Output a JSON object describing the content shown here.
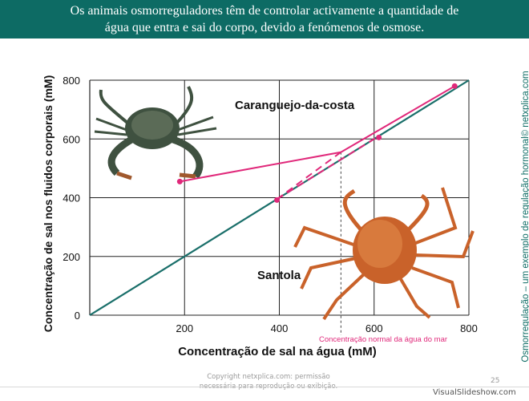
{
  "header": {
    "line1": "Os animais osmorreguladores têm de controlar activamente a quantidade de",
    "line2": "água que entra e sai do corpo, devido a fenómenos de osmose."
  },
  "sidebar": {
    "text": "Osmorregulação – um exemplo de regulação hormonal© netxplica.com"
  },
  "footer": {
    "copyright_line1": "Copyright netxplica.com: permissão",
    "copyright_line2": "necessária para reprodução ou exibição.",
    "page_number": "25",
    "watermark": "VisualSlideshow.com"
  },
  "colors": {
    "brand": "#0d6b64",
    "diagonal": "#1a6f6a",
    "crab_line": "#e0287a",
    "annotation": "#e0287a",
    "crab_shore": "#3a4a3c",
    "crab_spider": "#c9622a"
  },
  "icons": [
    "shore-crab-image",
    "spider-crab-image"
  ],
  "chart_data": {
    "type": "line",
    "xlabel": "Concentração de sal na água (mM)",
    "ylabel": "Concentração de sal nos fluidos corporais (mM)",
    "xlim": [
      0,
      800
    ],
    "ylim": [
      0,
      800
    ],
    "x_ticks": [
      200,
      400,
      600,
      800
    ],
    "y_ticks": [
      0,
      200,
      400,
      600,
      800
    ],
    "grid": true,
    "series": [
      {
        "name": "",
        "x": [
          0,
          800
        ],
        "y": [
          0,
          800
        ],
        "style": "solid"
      },
      {
        "name": "Caranguejo-da-costa",
        "x": [
          190,
          530
        ],
        "y": [
          455,
          555
        ],
        "style": "solid"
      },
      {
        "name": "Caranguejo-da-costa",
        "x": [
          395,
          530
        ],
        "y": [
          395,
          555
        ],
        "style": "dashed"
      },
      {
        "name": "Caranguejo-da-costa",
        "x": [
          530,
          770
        ],
        "y": [
          555,
          780
        ],
        "style": "solid"
      },
      {
        "name": "Santola",
        "x": [
          395,
          610
        ],
        "y": [
          395,
          610
        ],
        "style": "dashed-diagonal"
      }
    ],
    "points": [
      {
        "x": 190,
        "y": 455
      },
      {
        "x": 395,
        "y": 392
      },
      {
        "x": 610,
        "y": 605
      },
      {
        "x": 770,
        "y": 780
      }
    ],
    "labels": {
      "shore_crab": "Caranguejo-da-costa",
      "spider_crab": "Santola",
      "reference": "Concentração normal da água do mar"
    },
    "reference_x": 530
  }
}
